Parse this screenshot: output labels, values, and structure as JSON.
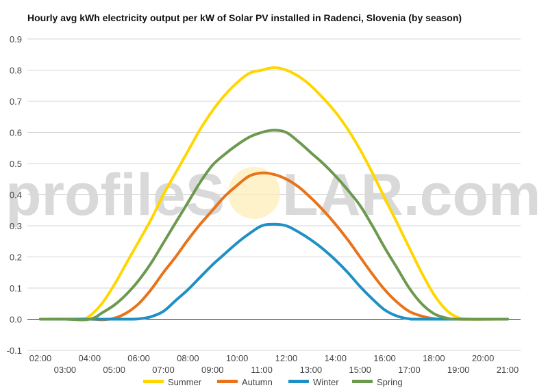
{
  "chart_data": {
    "type": "line",
    "title": "Hourly avg kWh electricity output per kW of Solar PV installed in Radenci, Slovenia (by season)",
    "watermark": {
      "left": "profileS",
      "right": "LAR.com"
    },
    "x": [
      "02:00",
      "03:00",
      "04:00",
      "05:00",
      "06:00",
      "07:00",
      "08:00",
      "09:00",
      "10:00",
      "11:00",
      "12:00",
      "13:00",
      "14:00",
      "15:00",
      "16:00",
      "17:00",
      "18:00",
      "19:00",
      "20:00",
      "21:00"
    ],
    "x_hours": [
      2,
      3,
      4,
      5,
      6,
      7,
      8,
      9,
      10,
      11,
      12,
      13,
      14,
      15,
      16,
      17,
      18,
      19,
      20,
      21
    ],
    "ylim": [
      -0.1,
      0.9
    ],
    "yticks": [
      "-0.1",
      "0.0",
      "0.1",
      "0.2",
      "0.3",
      "0.4",
      "0.5",
      "0.6",
      "0.7",
      "0.8",
      "0.9"
    ],
    "ytick_values": [
      -0.1,
      0.0,
      0.1,
      0.2,
      0.3,
      0.4,
      0.5,
      0.6,
      0.7,
      0.8,
      0.9
    ],
    "grid": true,
    "legend_position": "bottom",
    "series": [
      {
        "name": "Summer",
        "color": "#ffd700",
        "points": [
          [
            2,
            0
          ],
          [
            3,
            0
          ],
          [
            3.7,
            0.001
          ],
          [
            4,
            0.01
          ],
          [
            4.5,
            0.05
          ],
          [
            5,
            0.11
          ],
          [
            5.5,
            0.18
          ],
          [
            6,
            0.25
          ],
          [
            6.5,
            0.32
          ],
          [
            7,
            0.4
          ],
          [
            7.5,
            0.47
          ],
          [
            8,
            0.54
          ],
          [
            8.5,
            0.61
          ],
          [
            9,
            0.67
          ],
          [
            9.5,
            0.72
          ],
          [
            10,
            0.76
          ],
          [
            10.5,
            0.79
          ],
          [
            11,
            0.8
          ],
          [
            11.5,
            0.808
          ],
          [
            12,
            0.8
          ],
          [
            12.5,
            0.78
          ],
          [
            13,
            0.75
          ],
          [
            13.5,
            0.71
          ],
          [
            14,
            0.665
          ],
          [
            14.5,
            0.61
          ],
          [
            15,
            0.545
          ],
          [
            15.5,
            0.47
          ],
          [
            16,
            0.39
          ],
          [
            16.5,
            0.31
          ],
          [
            17,
            0.23
          ],
          [
            17.5,
            0.15
          ],
          [
            18,
            0.08
          ],
          [
            18.5,
            0.03
          ],
          [
            19,
            0.005
          ],
          [
            19.5,
            0
          ],
          [
            20,
            0
          ],
          [
            21,
            0
          ]
        ]
      },
      {
        "name": "Autumn",
        "color": "#e8731a",
        "points": [
          [
            2,
            0
          ],
          [
            4,
            0
          ],
          [
            4.5,
            -0.002
          ],
          [
            5,
            0.003
          ],
          [
            5.5,
            0.02
          ],
          [
            6,
            0.05
          ],
          [
            6.5,
            0.095
          ],
          [
            7,
            0.15
          ],
          [
            7.5,
            0.2
          ],
          [
            8,
            0.255
          ],
          [
            8.5,
            0.305
          ],
          [
            9,
            0.35
          ],
          [
            9.5,
            0.395
          ],
          [
            10,
            0.43
          ],
          [
            10.5,
            0.46
          ],
          [
            11,
            0.47
          ],
          [
            11.5,
            0.465
          ],
          [
            12,
            0.45
          ],
          [
            12.5,
            0.425
          ],
          [
            13,
            0.39
          ],
          [
            13.5,
            0.35
          ],
          [
            14,
            0.305
          ],
          [
            14.5,
            0.255
          ],
          [
            15,
            0.2
          ],
          [
            15.5,
            0.145
          ],
          [
            16,
            0.095
          ],
          [
            16.5,
            0.055
          ],
          [
            17,
            0.025
          ],
          [
            17.5,
            0.01
          ],
          [
            18,
            0.002
          ],
          [
            18.5,
            0
          ],
          [
            21,
            0
          ]
        ]
      },
      {
        "name": "Winter",
        "color": "#1e90c4",
        "points": [
          [
            2,
            0
          ],
          [
            5,
            0
          ],
          [
            5.5,
            0
          ],
          [
            6,
            0.001
          ],
          [
            6.5,
            0.008
          ],
          [
            7,
            0.025
          ],
          [
            7.5,
            0.06
          ],
          [
            8,
            0.095
          ],
          [
            8.5,
            0.135
          ],
          [
            9,
            0.175
          ],
          [
            9.5,
            0.21
          ],
          [
            10,
            0.245
          ],
          [
            10.5,
            0.275
          ],
          [
            11,
            0.3
          ],
          [
            11.5,
            0.305
          ],
          [
            12,
            0.3
          ],
          [
            12.5,
            0.28
          ],
          [
            13,
            0.255
          ],
          [
            13.5,
            0.225
          ],
          [
            14,
            0.19
          ],
          [
            14.5,
            0.15
          ],
          [
            15,
            0.105
          ],
          [
            15.5,
            0.065
          ],
          [
            16,
            0.03
          ],
          [
            16.5,
            0.01
          ],
          [
            17,
            0.001
          ],
          [
            17.5,
            0
          ],
          [
            21,
            0
          ]
        ]
      },
      {
        "name": "Spring",
        "color": "#6b9a4e",
        "points": [
          [
            2,
            0
          ],
          [
            3,
            0
          ],
          [
            3.8,
            -0.002
          ],
          [
            4.2,
            0.005
          ],
          [
            4.5,
            0.02
          ],
          [
            5,
            0.045
          ],
          [
            5.5,
            0.08
          ],
          [
            6,
            0.125
          ],
          [
            6.5,
            0.18
          ],
          [
            7,
            0.245
          ],
          [
            7.5,
            0.31
          ],
          [
            8,
            0.375
          ],
          [
            8.5,
            0.44
          ],
          [
            9,
            0.495
          ],
          [
            9.5,
            0.53
          ],
          [
            10,
            0.56
          ],
          [
            10.5,
            0.585
          ],
          [
            11,
            0.6
          ],
          [
            11.5,
            0.607
          ],
          [
            12,
            0.6
          ],
          [
            12.5,
            0.57
          ],
          [
            13,
            0.535
          ],
          [
            13.5,
            0.5
          ],
          [
            14,
            0.46
          ],
          [
            14.5,
            0.415
          ],
          [
            15,
            0.365
          ],
          [
            15.5,
            0.3
          ],
          [
            16,
            0.23
          ],
          [
            16.5,
            0.165
          ],
          [
            17,
            0.1
          ],
          [
            17.5,
            0.05
          ],
          [
            18,
            0.018
          ],
          [
            18.5,
            0.004
          ],
          [
            19,
            0
          ],
          [
            21,
            0
          ]
        ]
      }
    ]
  }
}
